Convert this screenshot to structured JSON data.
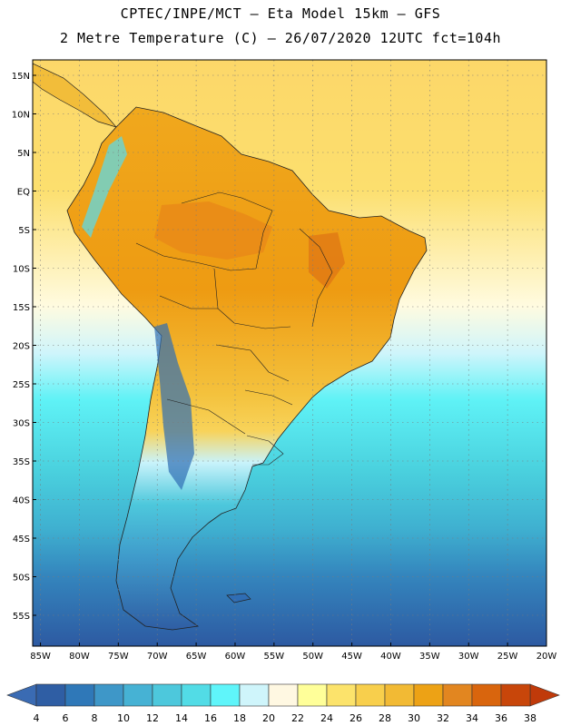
{
  "title_line1": "CPTEC/INPE/MCT –   Eta Model 15km – GFS",
  "title_line2": "2 Metre Temperature (C) – 26/07/2020 12UTC fct=104h",
  "map": {
    "lon_range": [
      -86,
      -20
    ],
    "lat_range": [
      -59,
      17
    ],
    "lat_ticks": [
      "15N",
      "10N",
      "5N",
      "EQ",
      "5S",
      "10S",
      "15S",
      "20S",
      "25S",
      "30S",
      "35S",
      "40S",
      "45S",
      "50S",
      "55S"
    ],
    "lat_values": [
      15,
      10,
      5,
      0,
      -5,
      -10,
      -15,
      -20,
      -25,
      -30,
      -35,
      -40,
      -45,
      -50,
      -55
    ],
    "lon_ticks": [
      "85W",
      "80W",
      "75W",
      "70W",
      "65W",
      "60W",
      "55W",
      "50W",
      "45W",
      "40W",
      "35W",
      "30W",
      "25W",
      "20W"
    ],
    "lon_values": [
      -85,
      -80,
      -75,
      -70,
      -65,
      -60,
      -55,
      -50,
      -45,
      -40,
      -35,
      -30,
      -25,
      -20
    ],
    "colorbar": {
      "labels": [
        "4",
        "6",
        "8",
        "10",
        "12",
        "14",
        "16",
        "18",
        "20",
        "22",
        "24",
        "26",
        "28",
        "30",
        "32",
        "34",
        "36",
        "38"
      ],
      "colors": [
        "#2f5ea4",
        "#2f78b8",
        "#3e97c8",
        "#46b2d4",
        "#4dc8dc",
        "#52dce6",
        "#5ff5fa",
        "#cff5fb",
        "#fff8e2",
        "#ffff99",
        "#fce36b",
        "#f8cf4c",
        "#f2ba34",
        "#eda215",
        "#e28620",
        "#d9650d",
        "#c8460a"
      ],
      "low_end_color": "#3a6bb3",
      "high_end_color": "#c03a0a"
    }
  }
}
